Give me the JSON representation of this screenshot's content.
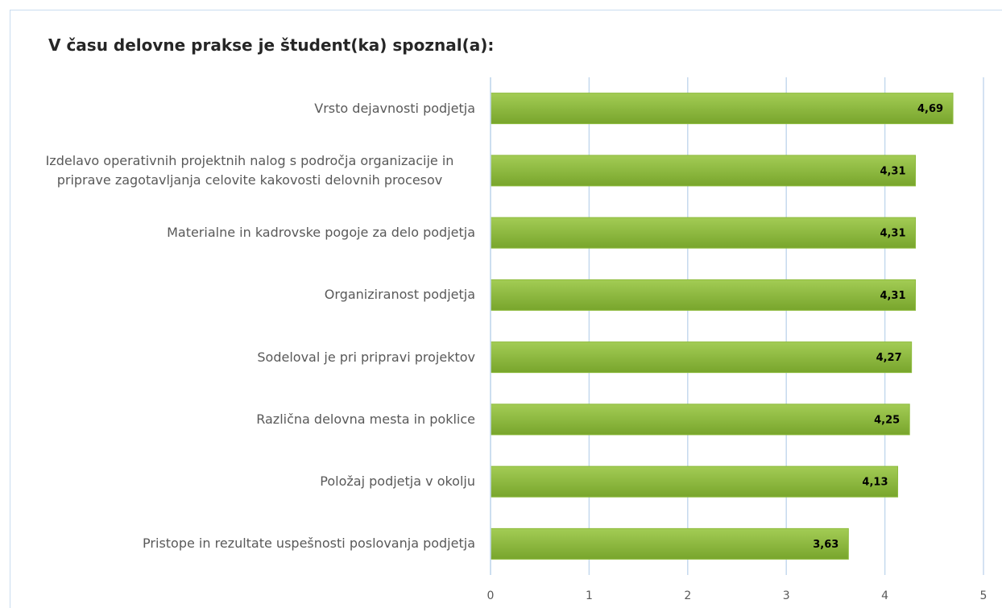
{
  "chart_data": {
    "type": "barh",
    "title": "V času delovne prakse je študent(ka) spoznal(a):",
    "categories": [
      "Vrsto dejavnosti podjetja",
      "Izdelavo operativnih projektnih nalog s področja organizacije in priprave zagotavljanja celovite kakovosti delovnih procesov",
      "Materialne in kadrovske pogoje za delo podjetja",
      "Organiziranost podjetja",
      "Sodeloval je pri pripravi projektov",
      "Različna delovna mesta in poklice",
      "Položaj podjetja v okolju",
      "Pristope in rezultate uspešnosti poslovanja podjetja"
    ],
    "values": [
      4.69,
      4.31,
      4.31,
      4.31,
      4.27,
      4.25,
      4.13,
      3.63
    ],
    "value_labels": [
      "4,69",
      "4,31",
      "4,31",
      "4,31",
      "4,27",
      "4,25",
      "4,13",
      "3,63"
    ],
    "color": "#8dbb3c",
    "xlim": [
      0,
      5
    ],
    "xticks": [
      0,
      1,
      2,
      3,
      4,
      5
    ],
    "grid": true
  }
}
